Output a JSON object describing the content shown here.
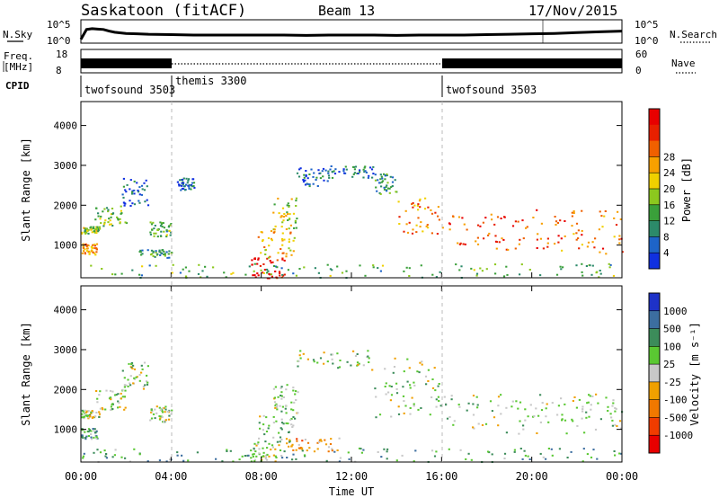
{
  "header": {
    "station": "Saskatoon (fitACF)",
    "beam": "Beam 13",
    "date": "17/Nov/2015"
  },
  "noise_panel": {
    "left_label": "N.Sky",
    "right_label": "N.Search",
    "left_ticks": [
      "10^5",
      "10^0"
    ],
    "right_ticks": [
      "10^5",
      "10^0"
    ],
    "series": [
      {
        "x": [
          0,
          0.25,
          0.5,
          0.75,
          1,
          1.25,
          1.5,
          2,
          2.5,
          3,
          4,
          5,
          6,
          7,
          8,
          9,
          10,
          11,
          12,
          13,
          14,
          15,
          16,
          17,
          18,
          19,
          20,
          21,
          22,
          23,
          24
        ],
        "y": [
          0.5,
          3.0,
          3.2,
          3.1,
          3.0,
          2.6,
          2.3,
          2.0,
          1.9,
          1.8,
          1.7,
          1.6,
          1.6,
          1.6,
          1.6,
          1.6,
          1.5,
          1.6,
          1.6,
          1.6,
          1.5,
          1.6,
          1.6,
          1.6,
          1.7,
          1.8,
          1.9,
          2.0,
          2.2,
          2.4,
          2.6
        ]
      }
    ]
  },
  "freq_panel": {
    "left_label_1": "Freq.",
    "left_label_2": "[MHz]",
    "right_label": "Nave",
    "left_ticks": [
      "18",
      "8"
    ],
    "right_ticks": [
      "60",
      "0"
    ]
  },
  "cpid": {
    "label": "CPID",
    "segments": [
      {
        "start": 0,
        "end": 4,
        "text": "twofsound 3503"
      },
      {
        "start": 4,
        "end": 16,
        "text": "themis 3300"
      },
      {
        "start": 16,
        "end": 24,
        "text": "twofsound 3503"
      }
    ]
  },
  "chart_data": [
    {
      "type": "heatmap",
      "title": "",
      "xlabel": "",
      "ylabel": "Slant Range [km]",
      "xlim": [
        0,
        24
      ],
      "ylim": [
        180,
        4600
      ],
      "y_ticks": [
        1000,
        2000,
        3000,
        4000
      ],
      "colorbar": {
        "label": "Power [dB]",
        "ticks": [
          "4",
          "8",
          "12",
          "16",
          "20",
          "24",
          "28"
        ],
        "colors": [
          "#1030e0",
          "#1e64c8",
          "#2c8a6a",
          "#3aa03a",
          "#8cc81e",
          "#f0d000",
          "#f8a000",
          "#f06000",
          "#e82000",
          "#e80000"
        ]
      },
      "regions": [
        {
          "x0": 0.0,
          "x1": 0.7,
          "r0": 780,
          "r1": 1050,
          "level": 0.65
        },
        {
          "x0": 0.0,
          "x1": 0.8,
          "r0": 1300,
          "r1": 1500,
          "level": 0.45
        },
        {
          "x0": 0.6,
          "x1": 2.0,
          "r0": 1500,
          "r1": 2000,
          "level": 0.4
        },
        {
          "x0": 1.8,
          "x1": 3.0,
          "r0": 2000,
          "r1": 2700,
          "level": 0.15
        },
        {
          "x0": 3.0,
          "x1": 4.0,
          "r0": 1200,
          "r1": 1600,
          "level": 0.35
        },
        {
          "x0": 2.5,
          "x1": 4.0,
          "r0": 700,
          "r1": 900,
          "level": 0.3
        },
        {
          "x0": 4.2,
          "x1": 5.0,
          "r0": 2400,
          "r1": 2700,
          "level": 0.15
        },
        {
          "x0": 7.5,
          "x1": 9.0,
          "r0": 180,
          "r1": 700,
          "level": 0.95
        },
        {
          "x0": 7.8,
          "x1": 9.5,
          "r0": 700,
          "r1": 1400,
          "level": 0.6
        },
        {
          "x0": 8.5,
          "x1": 9.6,
          "r0": 1400,
          "r1": 2200,
          "level": 0.5
        },
        {
          "x0": 9.5,
          "x1": 11.0,
          "r0": 2500,
          "r1": 2950,
          "level": 0.2
        },
        {
          "x0": 11.0,
          "x1": 13.0,
          "r0": 2700,
          "r1": 3000,
          "level": 0.2
        },
        {
          "x0": 13.0,
          "x1": 14.0,
          "r0": 2300,
          "r1": 2800,
          "level": 0.3
        },
        {
          "x0": 14.0,
          "x1": 16.0,
          "r0": 1300,
          "r1": 2200,
          "level": 0.7
        },
        {
          "x0": 16.0,
          "x1": 20.0,
          "r0": 900,
          "r1": 1800,
          "level": 0.8
        },
        {
          "x0": 20.0,
          "x1": 24.0,
          "r0": 800,
          "r1": 1900,
          "level": 0.75
        },
        {
          "x0": 0.0,
          "x1": 24.0,
          "r0": 200,
          "r1": 550,
          "level": 0.35
        }
      ]
    },
    {
      "type": "heatmap",
      "title": "",
      "xlabel": "Time UT",
      "ylabel": "Slant Range [km]",
      "xlim": [
        0,
        24
      ],
      "ylim": [
        180,
        4600
      ],
      "x_ticks": [
        "00:00",
        "04:00",
        "08:00",
        "12:00",
        "16:00",
        "20:00",
        "00:00"
      ],
      "y_ticks": [
        1000,
        2000,
        3000,
        4000
      ],
      "colorbar": {
        "label": "Velocity [m s⁻¹]",
        "ticks": [
          "1000",
          "500",
          "100",
          "25",
          "-25",
          "-100",
          "-500",
          "-1000"
        ],
        "colors": [
          "#1e32c8",
          "#3c6ea0",
          "#3c8c5a",
          "#5ac832",
          "#c8c8c8",
          "#f0a000",
          "#f07800",
          "#f03c00",
          "#e80000"
        ]
      },
      "regions": [
        {
          "x0": 0.0,
          "x1": 0.7,
          "r0": 780,
          "r1": 1050,
          "level": 0.35
        },
        {
          "x0": 0.0,
          "x1": 0.8,
          "r0": 1300,
          "r1": 1500,
          "level": 0.45
        },
        {
          "x0": 0.6,
          "x1": 2.0,
          "r0": 1500,
          "r1": 2000,
          "level": 0.45
        },
        {
          "x0": 1.8,
          "x1": 3.0,
          "r0": 2000,
          "r1": 2700,
          "level": 0.45
        },
        {
          "x0": 3.0,
          "x1": 4.0,
          "r0": 1200,
          "r1": 1600,
          "level": 0.45
        },
        {
          "x0": 7.5,
          "x1": 9.0,
          "r0": 180,
          "r1": 700,
          "level": 0.5
        },
        {
          "x0": 7.8,
          "x1": 9.5,
          "r0": 700,
          "r1": 1400,
          "level": 0.4
        },
        {
          "x0": 8.5,
          "x1": 9.6,
          "r0": 1400,
          "r1": 2200,
          "level": 0.45
        },
        {
          "x0": 9.0,
          "x1": 11.5,
          "r0": 450,
          "r1": 800,
          "level": 0.62
        },
        {
          "x0": 9.5,
          "x1": 13.0,
          "r0": 2500,
          "r1": 3000,
          "level": 0.45
        },
        {
          "x0": 13.0,
          "x1": 16.0,
          "r0": 1300,
          "r1": 2800,
          "level": 0.45
        },
        {
          "x0": 16.0,
          "x1": 24.0,
          "r0": 900,
          "r1": 1900,
          "level": 0.45
        },
        {
          "x0": 0.0,
          "x1": 24.0,
          "r0": 200,
          "r1": 550,
          "level": 0.3
        }
      ]
    }
  ]
}
